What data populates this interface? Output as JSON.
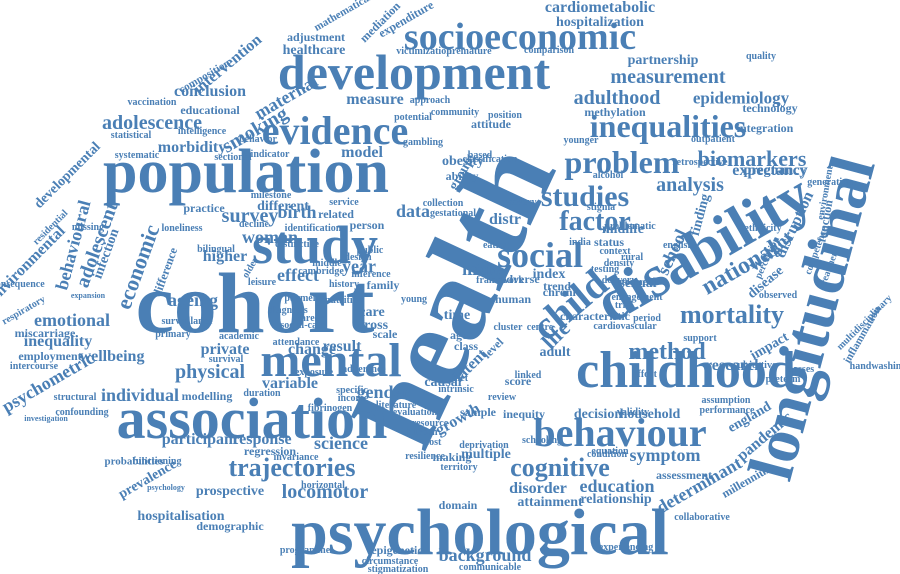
{
  "colors": {
    "word": "#4a7fb5",
    "background": "#ffffff"
  },
  "words": [
    "health",
    "cohort",
    "longitudinal",
    "psychological",
    "childhood",
    "population",
    "association",
    "development",
    "study",
    "disability",
    "mental",
    "socioeconomic",
    "behaviour",
    "evidence",
    "child",
    "social",
    "problem",
    "inequalities",
    "studies",
    "factor",
    "mortality",
    "cognitive",
    "trajectories",
    "method",
    "adulthood",
    "measurement",
    "epidemiology",
    "biomarkers",
    "analysis",
    "national",
    "adolescence",
    "smoking",
    "maternal",
    "conclusion",
    "intervention",
    "expenditure",
    "cardiometabolic",
    "hospitalization",
    "mathematical",
    "mediation",
    "adjustment",
    "healthcare",
    "composition",
    "educational",
    "vaccination",
    "morbidity",
    "economic",
    "adolescent",
    "behavioural",
    "emotional",
    "inequality",
    "developmental",
    "survey",
    "woman",
    "birth",
    "data",
    "ageing",
    "higher",
    "effect",
    "year",
    "risk",
    "distr",
    "more",
    "life",
    "school",
    "midlife",
    "finding",
    "weight",
    "disease",
    "disruption",
    "expectancy",
    "inflammation",
    "physical",
    "private",
    "wellbeing",
    "psychometric",
    "employment",
    "intercourse",
    "miscarriage",
    "individual",
    "participant",
    "response",
    "science",
    "regression",
    "prevalence",
    "prospective",
    "hospitalisation",
    "locomotor",
    "demographic",
    "programme",
    "epigenetic",
    "circumstance",
    "stigmatization",
    "communicable",
    "background",
    "experiencing",
    "collaborative",
    "attainment",
    "relationship",
    "education",
    "disorder",
    "determinant",
    "symptom",
    "pandemic",
    "england",
    "millennium",
    "assessment",
    "household",
    "decision",
    "inequity",
    "growth",
    "making",
    "multiple",
    "equation",
    "sexual",
    "adult",
    "research",
    "impact",
    "support",
    "methylation",
    "integration",
    "technology",
    "pregnancy",
    "generation",
    "environment",
    "competence",
    "treatment",
    "function",
    "handwashing",
    "multidisciplinary",
    "outpatient",
    "younger",
    "alcohol",
    "stigma",
    "status",
    "context",
    "india",
    "testing",
    "obesity",
    "ability",
    "group",
    "model",
    "measure",
    "person",
    "related",
    "different",
    "service",
    "practice",
    "infection",
    "difference",
    "older",
    "family",
    "history",
    "gender",
    "specific",
    "income",
    "variable",
    "modelling",
    "structural",
    "confounding",
    "investigation",
    "respiratory",
    "consequence",
    "expansion",
    "environmental",
    "functioning",
    "probabilities",
    "psychology",
    "horizontal",
    "invariance",
    "change",
    "result",
    "care",
    "cross",
    "scale",
    "time",
    "aged",
    "class",
    "sample",
    "review",
    "latent",
    "level",
    "causal",
    "score",
    "trend",
    "linked",
    "adverse",
    "centre",
    "human",
    "index",
    "chronic",
    "characteristic",
    "partnership",
    "quality",
    "potential",
    "community",
    "approach",
    "position",
    "attitude",
    "gambling",
    "intelligence",
    "systematic",
    "statistical",
    "sectional",
    "indicator",
    "behavior",
    "based",
    "classification",
    "comparison",
    "victimization",
    "premature",
    "problematic",
    "retrospective",
    "perception",
    "domain",
    "territory",
    "deprivation",
    "literature",
    "schooling",
    "performance",
    "assumption",
    "condition",
    "validity",
    "payment",
    "primary",
    "academic",
    "survival",
    "exposure",
    "fibrinogen",
    "ethnicity",
    "distinctive",
    "identification",
    "residential",
    "missing",
    "loneliness",
    "milestone",
    "decline",
    "bilingual",
    "career",
    "leisure",
    "middle",
    "young",
    "public",
    "design",
    "inference",
    "english",
    "delivery",
    "outcome",
    "period",
    "trial",
    "cambridge",
    "diagnosis",
    "nutrition",
    "attendance",
    "adherence",
    "subjective",
    "classes",
    "preterm",
    "observed",
    "effort",
    "rural",
    "density",
    "engagement",
    "cardiovascular",
    "diet",
    "intrinsic",
    "cluster",
    "framework",
    "collection",
    "gestational",
    "recovery",
    "eating",
    "burden",
    "cost",
    "resilience",
    "resource",
    "evaluation",
    "duration",
    "social-care",
    "surveillance"
  ]
}
